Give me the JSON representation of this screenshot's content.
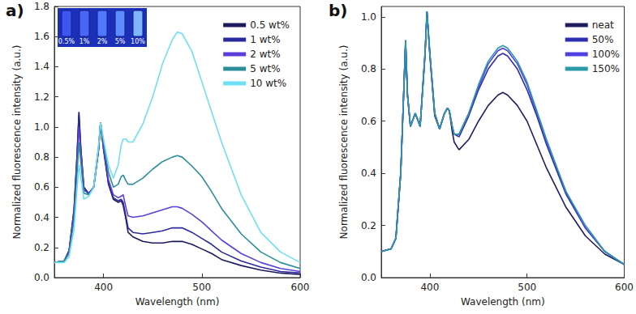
{
  "chart_data": [
    {
      "type": "line",
      "panel_label": "a)",
      "x_label": "Wavelength (nm)",
      "y_label": "Normalized fluorescence intensity (a.u.)",
      "x": [
        350,
        360,
        365,
        370,
        373,
        375,
        377,
        380,
        385,
        390,
        395,
        397,
        400,
        405,
        410,
        415,
        418,
        420,
        423,
        425,
        430,
        440,
        450,
        460,
        470,
        475,
        480,
        490,
        500,
        510,
        520,
        540,
        560,
        580,
        600
      ],
      "xlim": [
        350,
        600
      ],
      "xticks": [
        400,
        500,
        600
      ],
      "ylim": [
        0,
        1.8
      ],
      "yticks": [
        {
          "value": 0,
          "label": "0.0"
        },
        0.2,
        0.4,
        0.6,
        0.8,
        {
          "value": 1,
          "label": "1.0"
        },
        1.2,
        1.4,
        1.6,
        1.8
      ],
      "grid": false,
      "legend": "upper right",
      "marker": "none",
      "line_style": "solid",
      "inset_labels": [
        "0.5%",
        "1%",
        "2%",
        "5%",
        "10%"
      ],
      "series": [
        {
          "name": "0.5 wt%",
          "color": "#1c1a5c",
          "values": [
            0.1,
            0.11,
            0.18,
            0.45,
            0.8,
            1.1,
            0.85,
            0.6,
            0.55,
            0.6,
            0.85,
            1.03,
            0.85,
            0.62,
            0.52,
            0.5,
            0.51,
            0.48,
            0.38,
            0.3,
            0.27,
            0.24,
            0.23,
            0.23,
            0.24,
            0.24,
            0.24,
            0.22,
            0.19,
            0.16,
            0.12,
            0.08,
            0.05,
            0.03,
            0.02
          ]
        },
        {
          "name": "1 wt%",
          "color": "#2a2a9e",
          "values": [
            0.1,
            0.11,
            0.18,
            0.45,
            0.8,
            1.08,
            0.85,
            0.6,
            0.56,
            0.6,
            0.85,
            1.03,
            0.86,
            0.63,
            0.53,
            0.51,
            0.52,
            0.5,
            0.4,
            0.33,
            0.3,
            0.29,
            0.3,
            0.31,
            0.33,
            0.33,
            0.33,
            0.3,
            0.26,
            0.22,
            0.17,
            0.11,
            0.07,
            0.04,
            0.03
          ]
        },
        {
          "name": "2 wt%",
          "color": "#5b3fd8",
          "values": [
            0.1,
            0.11,
            0.17,
            0.42,
            0.75,
            1.0,
            0.82,
            0.58,
            0.56,
            0.6,
            0.86,
            1.03,
            0.87,
            0.65,
            0.55,
            0.53,
            0.54,
            0.55,
            0.46,
            0.41,
            0.4,
            0.41,
            0.43,
            0.45,
            0.47,
            0.47,
            0.46,
            0.42,
            0.37,
            0.31,
            0.25,
            0.16,
            0.1,
            0.06,
            0.04
          ]
        },
        {
          "name": "5 wt%",
          "color": "#2b8e9b",
          "values": [
            0.1,
            0.11,
            0.16,
            0.38,
            0.68,
            0.9,
            0.76,
            0.56,
            0.55,
            0.6,
            0.87,
            1.03,
            0.9,
            0.7,
            0.6,
            0.62,
            0.67,
            0.68,
            0.64,
            0.62,
            0.62,
            0.66,
            0.72,
            0.77,
            0.8,
            0.81,
            0.8,
            0.74,
            0.67,
            0.57,
            0.46,
            0.29,
            0.17,
            0.1,
            0.06
          ]
        },
        {
          "name": "10 wt%",
          "color": "#6fe0f2",
          "values": [
            0.1,
            0.1,
            0.14,
            0.32,
            0.58,
            0.75,
            0.66,
            0.52,
            0.54,
            0.6,
            0.88,
            1.03,
            0.92,
            0.75,
            0.66,
            0.75,
            0.88,
            0.92,
            0.92,
            0.9,
            0.9,
            1.02,
            1.2,
            1.42,
            1.58,
            1.63,
            1.62,
            1.5,
            1.3,
            1.1,
            0.9,
            0.55,
            0.3,
            0.17,
            0.1
          ]
        }
      ]
    },
    {
      "type": "line",
      "panel_label": "b)",
      "x_label": "Wavelength (nm)",
      "y_label": "Normalized fluorescence intensity (a.u.)",
      "x": [
        350,
        360,
        365,
        370,
        373,
        375,
        377,
        380,
        385,
        390,
        395,
        397,
        400,
        405,
        410,
        415,
        418,
        420,
        423,
        425,
        430,
        440,
        450,
        460,
        470,
        475,
        480,
        490,
        500,
        510,
        520,
        540,
        560,
        580,
        600
      ],
      "xlim": [
        350,
        600
      ],
      "xticks": [
        400,
        500,
        600
      ],
      "ylim": [
        0,
        1.04
      ],
      "yticks": [
        {
          "value": 0,
          "label": "0.0"
        },
        0.2,
        0.4,
        0.6,
        0.8,
        {
          "value": 1,
          "label": "1.0"
        }
      ],
      "grid": false,
      "legend": "upper right",
      "marker": "none",
      "line_style": "solid",
      "series": [
        {
          "name": "neat",
          "color": "#1f1d5e",
          "values": [
            0.1,
            0.11,
            0.15,
            0.4,
            0.7,
            0.9,
            0.7,
            0.58,
            0.63,
            0.58,
            0.85,
            1.02,
            0.85,
            0.62,
            0.57,
            0.63,
            0.65,
            0.64,
            0.56,
            0.52,
            0.49,
            0.53,
            0.6,
            0.66,
            0.7,
            0.71,
            0.7,
            0.66,
            0.6,
            0.51,
            0.42,
            0.27,
            0.16,
            0.09,
            0.05
          ]
        },
        {
          "name": "50%",
          "color": "#2e2eb2",
          "values": [
            0.1,
            0.11,
            0.15,
            0.4,
            0.7,
            0.91,
            0.7,
            0.58,
            0.63,
            0.58,
            0.86,
            1.02,
            0.86,
            0.63,
            0.57,
            0.63,
            0.65,
            0.64,
            0.58,
            0.55,
            0.54,
            0.62,
            0.72,
            0.8,
            0.85,
            0.86,
            0.85,
            0.8,
            0.72,
            0.62,
            0.51,
            0.32,
            0.19,
            0.1,
            0.05
          ]
        },
        {
          "name": "100%",
          "color": "#5040e0",
          "values": [
            0.1,
            0.11,
            0.15,
            0.4,
            0.7,
            0.91,
            0.7,
            0.58,
            0.63,
            0.58,
            0.86,
            1.02,
            0.86,
            0.63,
            0.57,
            0.63,
            0.65,
            0.64,
            0.58,
            0.55,
            0.55,
            0.63,
            0.73,
            0.82,
            0.87,
            0.88,
            0.87,
            0.82,
            0.74,
            0.63,
            0.52,
            0.33,
            0.19,
            0.1,
            0.05
          ]
        },
        {
          "name": "150%",
          "color": "#2a9aa8",
          "values": [
            0.1,
            0.11,
            0.15,
            0.4,
            0.7,
            0.91,
            0.7,
            0.58,
            0.63,
            0.58,
            0.86,
            1.02,
            0.86,
            0.63,
            0.57,
            0.63,
            0.65,
            0.64,
            0.58,
            0.55,
            0.55,
            0.63,
            0.74,
            0.83,
            0.88,
            0.89,
            0.88,
            0.83,
            0.75,
            0.64,
            0.53,
            0.33,
            0.2,
            0.1,
            0.05
          ]
        }
      ]
    }
  ]
}
